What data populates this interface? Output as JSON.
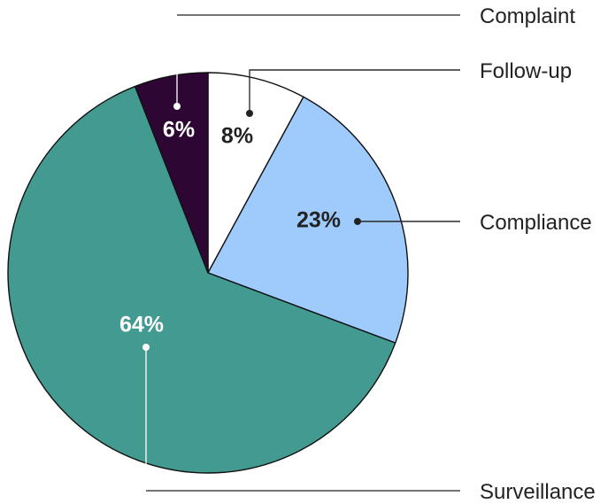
{
  "chart_data": {
    "type": "pie",
    "title": "",
    "slices": [
      {
        "name": "Follow-up",
        "value": 8,
        "label": "8%",
        "color": "#ffffff",
        "text_color": "#222222"
      },
      {
        "name": "Compliance",
        "value": 23,
        "label": "23%",
        "color": "#9ecbfb",
        "text_color": "#222222"
      },
      {
        "name": "Surveillance",
        "value": 64,
        "label": "64%",
        "color": "#429a91",
        "text_color": "#ffffff"
      },
      {
        "name": "Complaint",
        "value": 6,
        "label": "6%",
        "color": "#2d0633",
        "text_color": "#ffffff"
      }
    ],
    "start": "12 o'clock",
    "direction": "clockwise",
    "slice_outline_color": "#111111",
    "legend": "none; slices labelled by leader lines to the right"
  }
}
